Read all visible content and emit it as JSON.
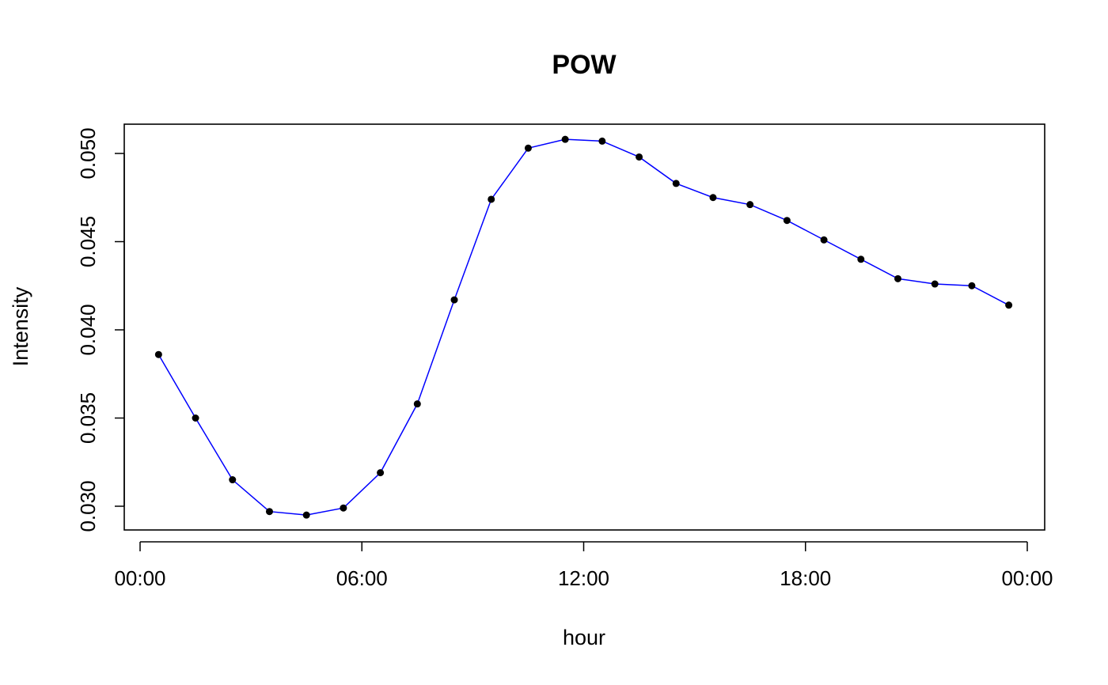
{
  "chart_data": {
    "type": "line",
    "title": "POW",
    "xlabel": "hour",
    "ylabel": "Intensity",
    "x_ticks": [
      "00:00",
      "06:00",
      "12:00",
      "18:00",
      "00:00"
    ],
    "y_ticks": [
      "0.030",
      "0.035",
      "0.040",
      "0.045",
      "0.050"
    ],
    "ylim": [
      0.0295,
      0.0517
    ],
    "xlim": [
      "00:00",
      "24:00"
    ],
    "grid": false,
    "x": [
      "00:30",
      "01:30",
      "02:30",
      "03:30",
      "04:30",
      "05:30",
      "06:30",
      "07:30",
      "08:30",
      "09:30",
      "10:30",
      "11:30",
      "12:30",
      "13:30",
      "14:30",
      "15:30",
      "16:30",
      "17:30",
      "18:30",
      "19:30",
      "20:30",
      "21:30",
      "22:30",
      "23:30"
    ],
    "series": [
      {
        "values": [
          0.0386,
          0.035,
          0.0315,
          0.0297,
          0.0295,
          0.0299,
          0.0319,
          0.0358,
          0.0417,
          0.0474,
          0.0503,
          0.0508,
          0.0507,
          0.0498,
          0.0483,
          0.0475,
          0.0471,
          0.0462,
          0.0451,
          0.044,
          0.0429,
          0.0426,
          0.0425,
          0.0414
        ],
        "line_color": "#0000ff",
        "marker_color": "#000000"
      }
    ]
  }
}
